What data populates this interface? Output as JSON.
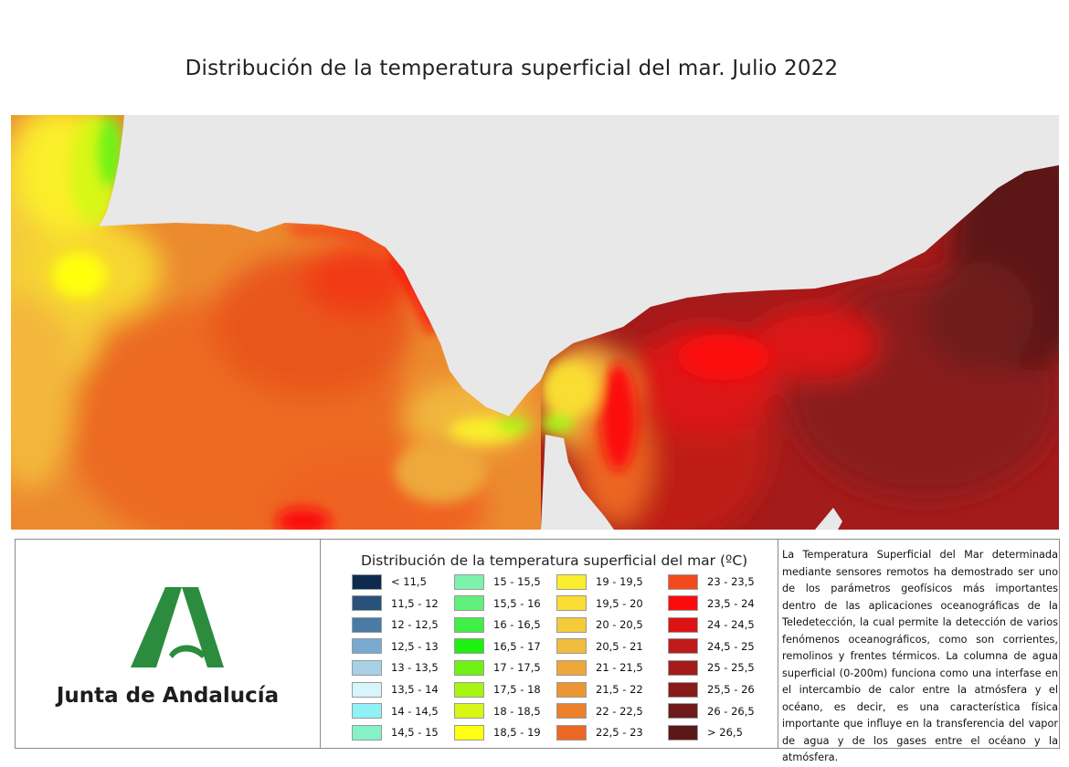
{
  "title": "Distribución de la temperatura superficial del mar. Julio 2022",
  "logo": {
    "text": "Junta de Andalucía",
    "green": "#2b8c3e"
  },
  "legend": {
    "title": "Distribución de la temperatura superficial del mar (ºC)",
    "columns": [
      [
        {
          "label": "< 11,5",
          "color": "#0d2c4d"
        },
        {
          "label": "11,5 - 12",
          "color": "#28527a"
        },
        {
          "label": "12 - 12,5",
          "color": "#4a7aa6"
        },
        {
          "label": "12,5 - 13",
          "color": "#7aa9d2"
        },
        {
          "label": "13 - 13,5",
          "color": "#a8d0e6"
        },
        {
          "label": "13,5 - 14",
          "color": "#d6f6fb"
        },
        {
          "label": "14 - 14,5",
          "color": "#8ef2f7"
        },
        {
          "label": "14,5 - 15",
          "color": "#86f1c6"
        }
      ],
      [
        {
          "label": "15 - 15,5",
          "color": "#7df2ab"
        },
        {
          "label": "15,5 - 16",
          "color": "#61f07c"
        },
        {
          "label": "16 - 16,5",
          "color": "#3fee46"
        },
        {
          "label": "16,5 - 17",
          "color": "#1fef11"
        },
        {
          "label": "17 - 17,5",
          "color": "#6ef214"
        },
        {
          "label": "17,5 - 18",
          "color": "#a6f512"
        },
        {
          "label": "18 - 18,5",
          "color": "#d8f712"
        },
        {
          "label": "18,5 - 19",
          "color": "#ffff11"
        }
      ],
      [
        {
          "label": "19 - 19,5",
          "color": "#fbee2c"
        },
        {
          "label": "19,5 - 20",
          "color": "#f9dd33"
        },
        {
          "label": "20 - 20,5",
          "color": "#f4cb3a"
        },
        {
          "label": "20,5 - 21",
          "color": "#f1bb3d"
        },
        {
          "label": "21 - 21,5",
          "color": "#eea83a"
        },
        {
          "label": "21,5 - 22",
          "color": "#ec9633"
        },
        {
          "label": "22 - 22,5",
          "color": "#eb7f2b"
        },
        {
          "label": "22,5 - 23",
          "color": "#ec6624"
        }
      ],
      [
        {
          "label": "23 - 23,5",
          "color": "#f24a1c"
        },
        {
          "label": "23,5 - 24",
          "color": "#fb0c0c"
        },
        {
          "label": "24 - 24,5",
          "color": "#dc1313"
        },
        {
          "label": "24,5 - 25",
          "color": "#bf1a19"
        },
        {
          "label": "25 - 25,5",
          "color": "#a41b1b"
        },
        {
          "label": "25,5 - 26",
          "color": "#8a1b1b"
        },
        {
          "label": "26 - 26,5",
          "color": "#6f1a1a"
        },
        {
          "label": "> 26,5",
          "color": "#5b1818"
        }
      ]
    ]
  },
  "description": "La Temperatura Superficial del Mar determinada mediante sensores remotos ha demostrado ser uno de los parámetros geofísicos más importantes dentro de las aplicaciones oceanográficas de la Teledetección, la cual permite la detección de varios fenómenos oceanográficos, como son corrientes, remolinos y frentes térmicos. La columna de agua superficial (0-200m) funciona como una interfase en el intercambio de calor entre la atmósfera y el océano, es decir, es una característica física importante que influye en la transferencia del vapor de agua y de los gases entre el océano y la atmósfera.",
  "map_colors": {
    "land": "#e8e8e8"
  }
}
